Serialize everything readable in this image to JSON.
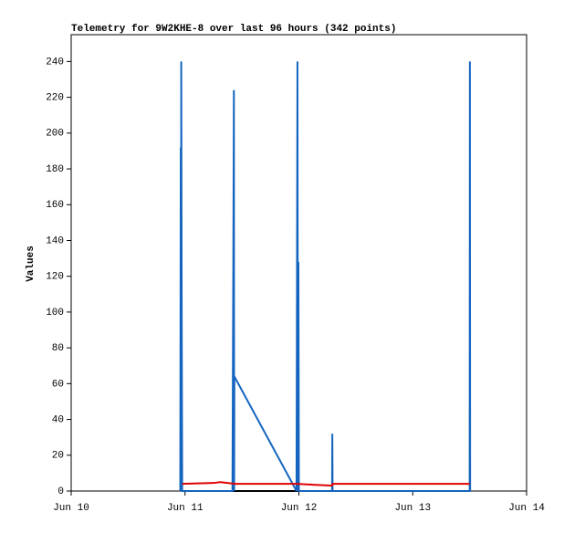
{
  "chart_data": {
    "type": "line",
    "title": "Telemetry for 9W2KHE-8 over last 96 hours (342 points)",
    "y_label": "Values",
    "xlim": [
      0,
      96
    ],
    "xticks": [
      {
        "value": 0,
        "label": "Jun 10"
      },
      {
        "value": 24,
        "label": "Jun 11"
      },
      {
        "value": 48,
        "label": "Jun 12"
      },
      {
        "value": 72,
        "label": "Jun 13"
      },
      {
        "value": 96,
        "label": "Jun 14"
      }
    ],
    "ylim": [
      0,
      255
    ],
    "yticks": [
      0,
      20,
      40,
      60,
      80,
      100,
      120,
      140,
      160,
      180,
      200,
      220,
      240
    ],
    "series": [
      {
        "color": "#000000",
        "x": [
          23.4,
          84.0
        ],
        "values": [
          0,
          0
        ]
      },
      {
        "color": "#1565c0",
        "x": [
          23.0,
          23.1,
          23.15,
          23.2,
          23.3,
          23.4,
          34.0,
          34.1,
          34.2,
          34.3,
          34.35,
          34.4,
          47.5,
          47.6,
          47.7,
          47.8,
          47.9,
          48.0,
          55.0,
          55.05,
          55.1,
          84.0,
          84.05,
          84.1
        ],
        "values": [
          0,
          192,
          0,
          240,
          96,
          0,
          0,
          72,
          144,
          224,
          0,
          64,
          0,
          112,
          240,
          0,
          128,
          0,
          0,
          32,
          0,
          0,
          240,
          0
        ]
      },
      {
        "color": "#e00000",
        "x": [
          23.4,
          30.0,
          31.5,
          34.5,
          47.5,
          51.0,
          55.0,
          55.1,
          84.0
        ],
        "values": [
          4,
          4.5,
          5,
          4,
          4,
          3.5,
          3,
          4,
          4
        ]
      }
    ]
  }
}
